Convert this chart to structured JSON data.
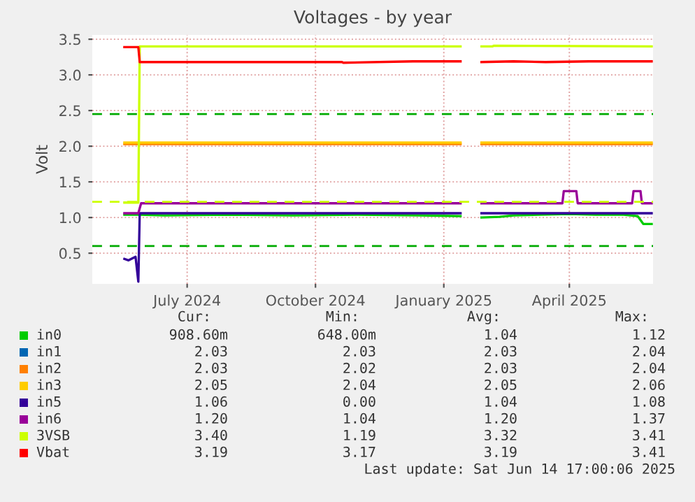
{
  "chart_data": {
    "type": "line",
    "title": "Voltages - by year",
    "ylabel": "Volt",
    "xlim": [
      "2024-04-24",
      "2025-05-31"
    ],
    "xticks": [
      {
        "value": "2024-07-01",
        "label": "July 2024"
      },
      {
        "value": "2024-10-01",
        "label": "October 2024"
      },
      {
        "value": "2025-01-01",
        "label": "January 2025"
      },
      {
        "value": "2025-04-01",
        "label": "April 2025"
      }
    ],
    "ylim": [
      0.07,
      3.56
    ],
    "yticks": [
      {
        "value": 0.5,
        "label": "0.5"
      },
      {
        "value": 1.0,
        "label": "1.0"
      },
      {
        "value": 1.5,
        "label": "1.5"
      },
      {
        "value": 2.0,
        "label": "2.0"
      },
      {
        "value": 2.5,
        "label": "2.5"
      },
      {
        "value": 3.0,
        "label": "3.0"
      },
      {
        "value": 3.5,
        "label": "3.5"
      }
    ],
    "grid": true,
    "legend": "bottom",
    "ref_lines": [
      {
        "axis": "y",
        "value": 2.45,
        "color": "#00aa00",
        "line_style": "dashed"
      },
      {
        "axis": "y",
        "value": 0.6,
        "color": "#00aa00",
        "line_style": "dashed"
      },
      {
        "axis": "y",
        "value": 1.22,
        "color": "#ccff00",
        "line_style": "dashed"
      }
    ],
    "series": [
      {
        "name": "in0",
        "color": "#00cc00",
        "x": [
          "2024-05-17",
          "2024-05-28",
          "2024-06-15",
          "2024-08-01",
          "2024-09-15",
          "2024-11-01",
          "2024-12-15",
          "2025-01-13",
          "2025-01-20",
          "2025-01-28",
          "2025-02-10",
          "2025-02-20",
          "2025-03-10",
          "2025-04-01",
          "2025-04-20",
          "2025-05-10",
          "2025-05-20",
          "2025-05-24",
          "2025-05-30"
        ],
        "values": [
          1.04,
          1.04,
          1.03,
          1.04,
          1.03,
          1.04,
          1.03,
          1.02,
          null,
          1.0,
          1.01,
          1.03,
          1.04,
          1.05,
          1.04,
          1.04,
          1.02,
          0.91,
          0.91
        ]
      },
      {
        "name": "in1",
        "color": "#0066b3"
      },
      {
        "name": "in2",
        "color": "#ff8000",
        "x": [
          "2024-05-17",
          "2025-01-13",
          "2025-01-20",
          "2025-01-28",
          "2025-05-30"
        ],
        "values": [
          2.03,
          2.03,
          null,
          2.03,
          2.03
        ]
      },
      {
        "name": "in3",
        "color": "#ffcc00",
        "x": [
          "2024-05-17",
          "2025-01-13",
          "2025-01-20",
          "2025-01-28",
          "2025-05-30"
        ],
        "values": [
          2.05,
          2.05,
          null,
          2.05,
          2.05
        ]
      },
      {
        "name": "in5",
        "color": "#330099",
        "x": [
          "2024-05-17",
          "2024-05-20",
          "2024-05-25",
          "2024-05-27",
          "2024-05-28",
          "2024-05-29",
          "2025-01-13",
          "2025-01-20",
          "2025-01-28",
          "2025-05-30"
        ],
        "values": [
          0.42,
          0.4,
          0.45,
          0.1,
          1.06,
          1.06,
          1.06,
          null,
          1.06,
          1.06
        ]
      },
      {
        "name": "in6",
        "color": "#990099",
        "x": [
          "2024-05-17",
          "2024-05-27",
          "2024-05-29",
          "2025-01-13",
          "2025-01-20",
          "2025-01-28",
          "2025-03-27",
          "2025-03-28",
          "2025-04-06",
          "2025-04-07",
          "2025-05-16",
          "2025-05-17",
          "2025-05-22",
          "2025-05-23",
          "2025-05-30"
        ],
        "values": [
          1.06,
          1.06,
          1.2,
          1.2,
          null,
          1.2,
          1.2,
          1.37,
          1.37,
          1.2,
          1.2,
          1.37,
          1.37,
          1.2,
          1.2
        ]
      },
      {
        "name": "3VSB",
        "color": "#ccff00",
        "x": [
          "2024-05-17",
          "2024-05-27",
          "2024-05-28",
          "2025-01-13",
          "2025-01-20",
          "2025-01-28",
          "2025-02-05",
          "2025-02-06",
          "2025-05-30"
        ],
        "values": [
          1.21,
          1.21,
          3.4,
          3.4,
          null,
          3.4,
          3.4,
          3.41,
          3.4
        ]
      },
      {
        "name": "Vbat",
        "color": "#ff0000",
        "x": [
          "2024-05-17",
          "2024-05-27",
          "2024-05-28",
          "2024-10-20",
          "2024-10-21",
          "2024-12-10",
          "2025-01-13",
          "2025-01-20",
          "2025-01-28",
          "2025-02-20",
          "2025-03-15",
          "2025-04-15",
          "2025-05-30"
        ],
        "values": [
          3.39,
          3.39,
          3.18,
          3.18,
          3.17,
          3.19,
          3.19,
          null,
          3.18,
          3.19,
          3.18,
          3.19,
          3.19
        ]
      }
    ],
    "annotations": [
      "Cur:",
      "Min:",
      "Avg:",
      "Max:",
      "908.60m",
      "648.00m",
      "1.04",
      "1.12",
      "2.03",
      "2.03",
      "2.03",
      "2.04",
      "2.03",
      "2.02",
      "2.03",
      "2.04",
      "2.05",
      "2.04",
      "2.05",
      "2.06",
      "1.06",
      "0.00",
      "1.04",
      "1.08",
      "1.20",
      "1.04",
      "1.20",
      "1.37",
      "3.40",
      "1.19",
      "3.32",
      "3.41",
      "3.19",
      "3.17",
      "3.19",
      "3.41",
      "Last update: Sat Jun 14 17:00:06 2025"
    ]
  }
}
